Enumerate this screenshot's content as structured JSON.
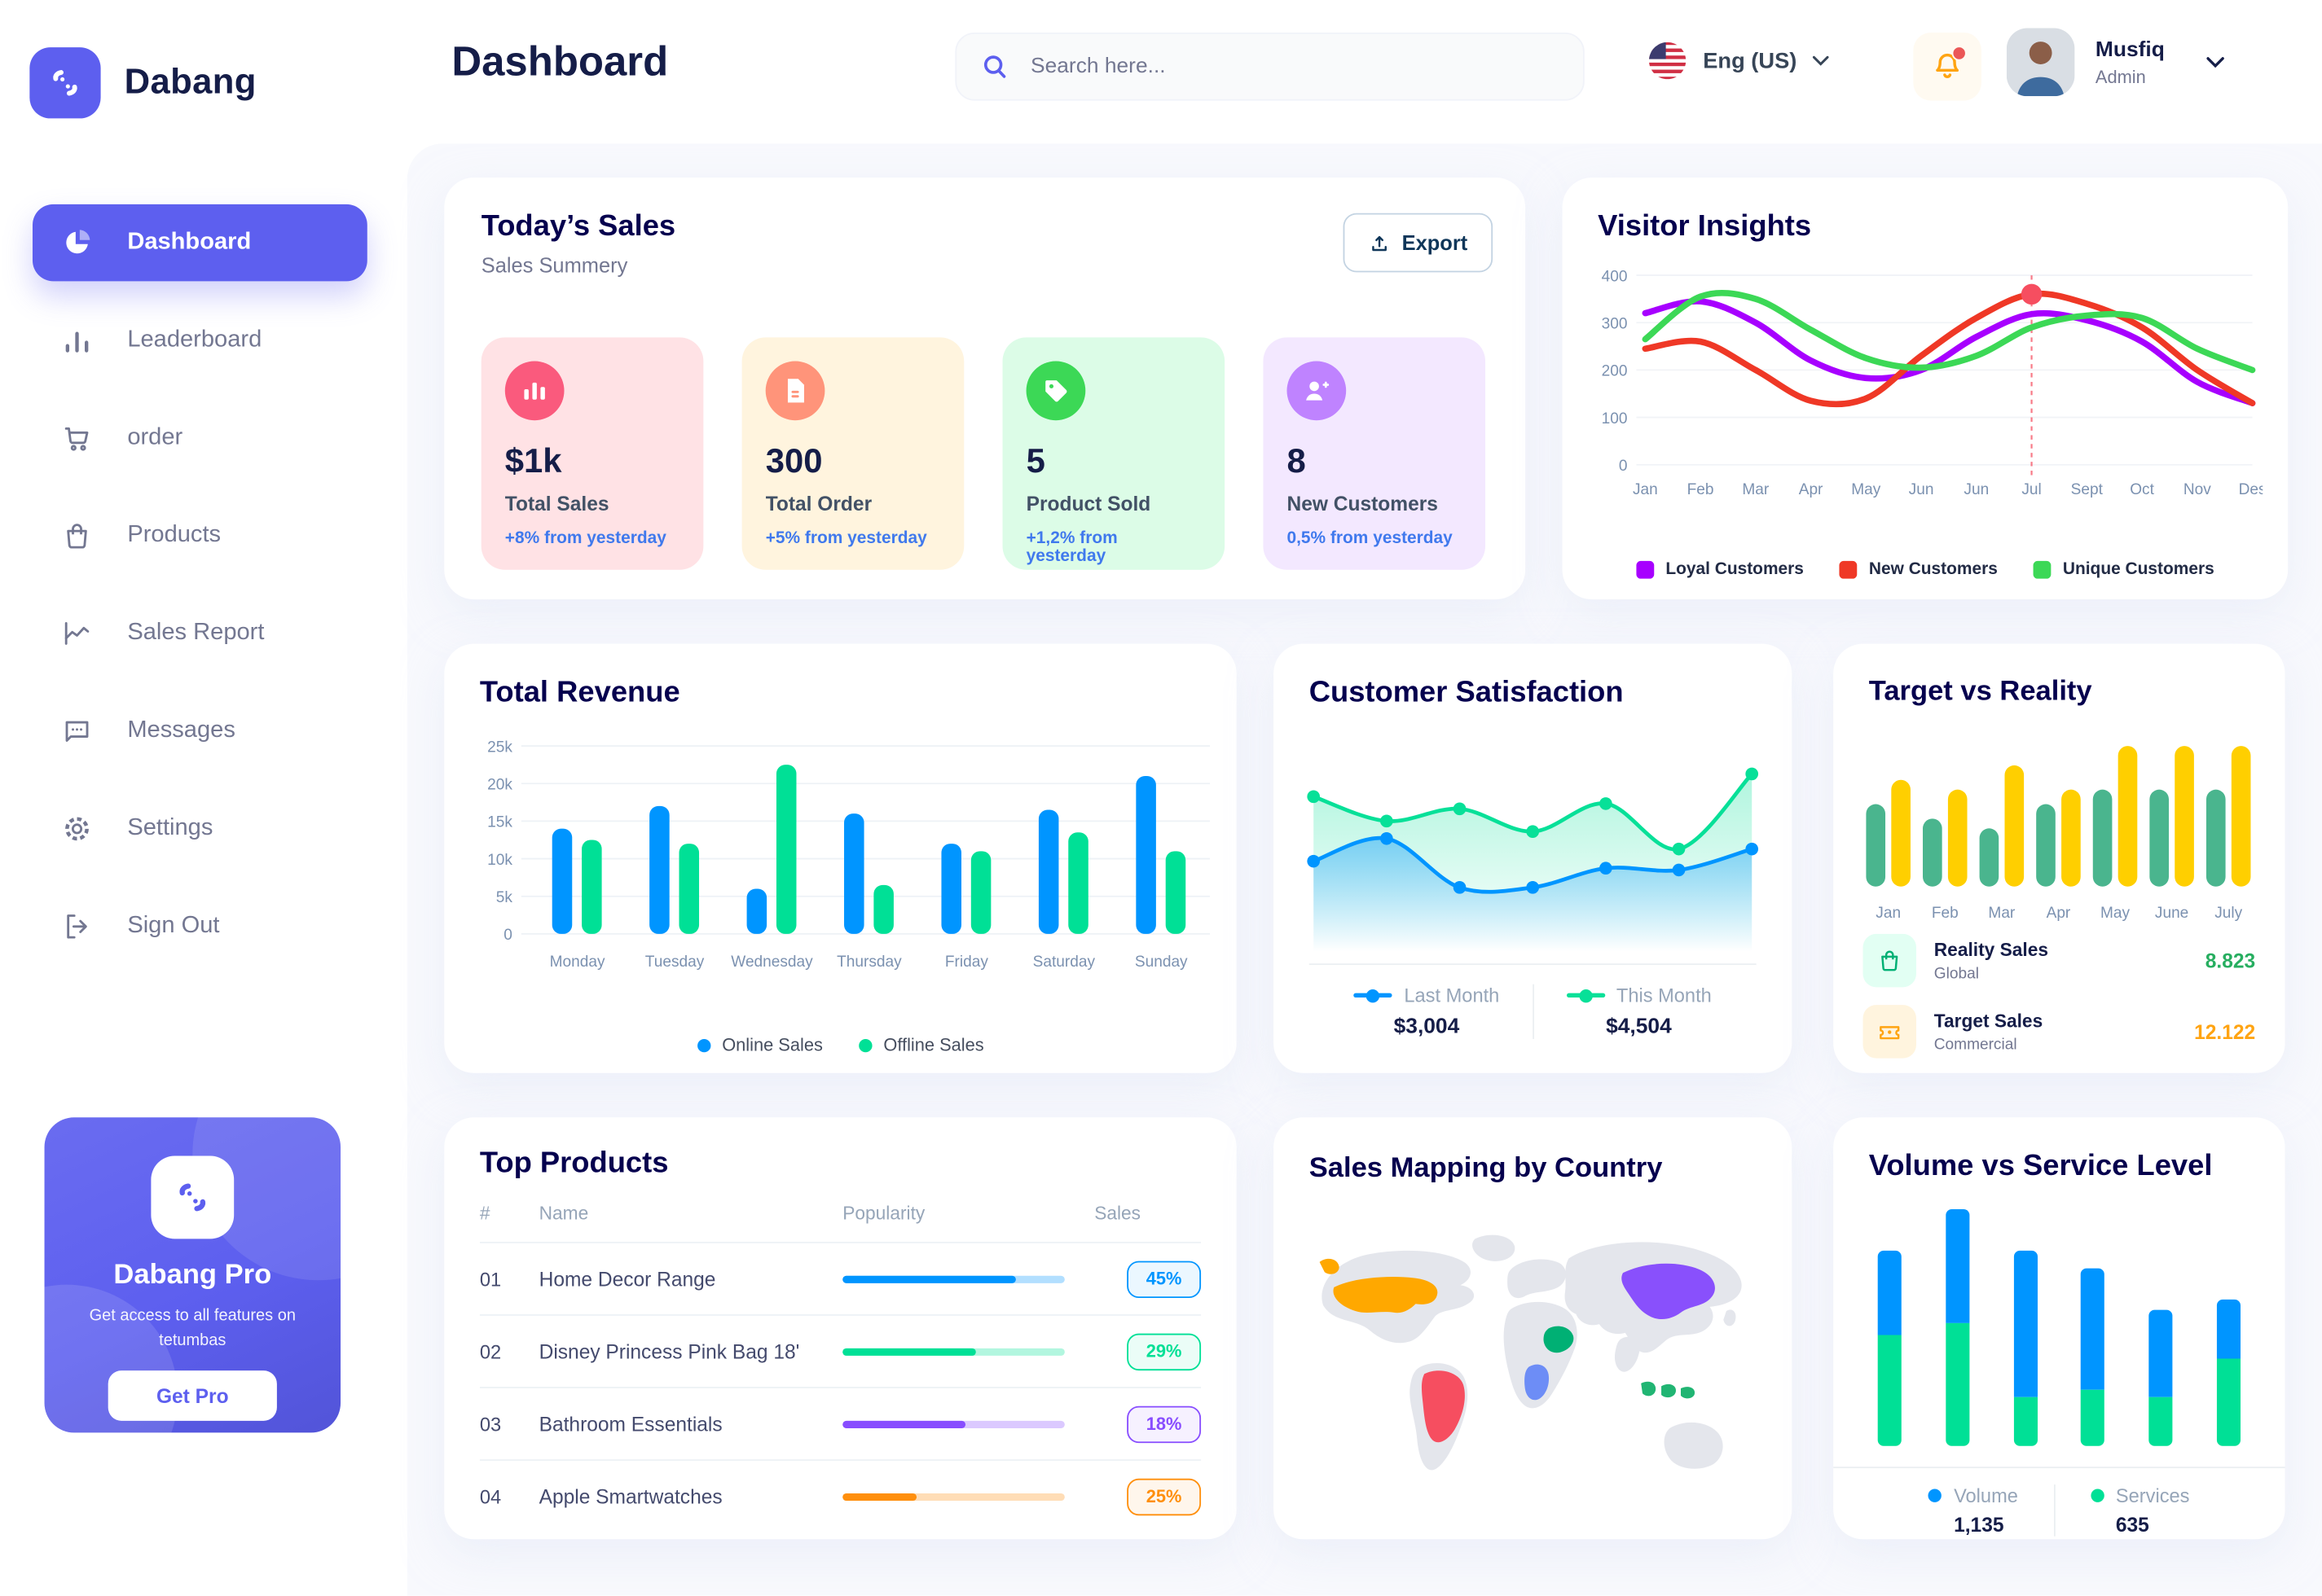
{
  "app": {
    "name": "Dabang"
  },
  "header": {
    "page_title": "Dashboard",
    "search_placeholder": "Search here...",
    "language": "Eng (US)",
    "user": {
      "name": "Musfiq",
      "role": "Admin"
    }
  },
  "sidebar": {
    "items": [
      {
        "label": "Dashboard",
        "icon": "pie-chart",
        "active": true
      },
      {
        "label": "Leaderboard",
        "icon": "bar-chart",
        "active": false
      },
      {
        "label": "order",
        "icon": "cart",
        "active": false
      },
      {
        "label": "Products",
        "icon": "bag",
        "active": false
      },
      {
        "label": "Sales Report",
        "icon": "line-chart",
        "active": false
      },
      {
        "label": "Messages",
        "icon": "chat",
        "active": false
      },
      {
        "label": "Settings",
        "icon": "gear",
        "active": false
      },
      {
        "label": "Sign Out",
        "icon": "sign-out",
        "active": false
      }
    ],
    "promo": {
      "title": "Dabang Pro",
      "subtitle": "Get access to all features on tetumbas",
      "button_label": "Get Pro"
    }
  },
  "today_sales": {
    "title": "Today’s Sales",
    "subtitle": "Sales Summery",
    "export_label": "Export",
    "cards": [
      {
        "value": "$1k",
        "label": "Total Sales",
        "delta": "+8% from yesterday",
        "bg": "#FFE2E5",
        "icon_bg": "#FA5A7D",
        "icon": "stat-chart",
        "delta_color": "#4079ED"
      },
      {
        "value": "300",
        "label": "Total Order",
        "delta": "+5% from yesterday",
        "bg": "#FFF4DE",
        "icon_bg": "#FF947A",
        "icon": "stat-file",
        "delta_color": "#4079ED"
      },
      {
        "value": "5",
        "label": "Product Sold",
        "delta": "+1,2% from yesterday",
        "bg": "#DCFCE7",
        "icon_bg": "#3CD856",
        "icon": "stat-tag",
        "delta_color": "#4079ED"
      },
      {
        "value": "8",
        "label": "New Customers",
        "delta": "0,5% from yesterday",
        "bg": "#F3E8FF",
        "icon_bg": "#BF83FF",
        "icon": "stat-user-plus",
        "delta_color": "#4079ED"
      }
    ]
  },
  "chart_data": {
    "visitor_insights": {
      "type": "line",
      "title": "Visitor Insights",
      "x": [
        "Jan",
        "Feb",
        "Mar",
        "Apr",
        "May",
        "Jun",
        "Jun",
        "Jul",
        "Sept",
        "Oct",
        "Nov",
        "Des"
      ],
      "ylim": [
        0,
        400
      ],
      "yticks": [
        0,
        100,
        200,
        300,
        400
      ],
      "grid": true,
      "legend_position": "bottom",
      "series": [
        {
          "name": "Loyal Customers",
          "color": "#A700FF",
          "values": [
            320,
            345,
            300,
            220,
            183,
            200,
            270,
            318,
            305,
            260,
            175,
            130
          ]
        },
        {
          "name": "New Customers",
          "color": "#EF3826",
          "values": [
            245,
            260,
            200,
            135,
            140,
            230,
            310,
            360,
            340,
            290,
            200,
            130
          ]
        },
        {
          "name": "Unique Customers",
          "color": "#3CD856",
          "values": [
            265,
            355,
            350,
            285,
            225,
            205,
            230,
            290,
            315,
            310,
            245,
            200
          ]
        }
      ],
      "marker": {
        "series": "New Customers",
        "x_index": 7,
        "value": 360,
        "color": "#F64E60"
      }
    },
    "total_revenue": {
      "type": "bar",
      "title": "Total Revenue",
      "categories": [
        "Monday",
        "Tuesday",
        "Wednesday",
        "Thursday",
        "Friday",
        "Saturday",
        "Sunday"
      ],
      "ylim": [
        0,
        25000
      ],
      "yticks": [
        0,
        5000,
        10000,
        15000,
        20000,
        25000
      ],
      "ytick_labels": [
        "0",
        "5k",
        "10k",
        "15k",
        "20k",
        "25k"
      ],
      "grid": true,
      "legend_position": "bottom",
      "series": [
        {
          "name": "Online Sales",
          "color": "#0095FF",
          "values": [
            14000,
            17000,
            6000,
            16000,
            12000,
            16500,
            21000
          ]
        },
        {
          "name": "Offline Sales",
          "color": "#00E096",
          "values": [
            12500,
            12000,
            22500,
            6500,
            11000,
            13500,
            11000
          ]
        }
      ]
    },
    "customer_satisfaction": {
      "type": "area",
      "title": "Customer Satisfaction",
      "x": [
        1,
        2,
        3,
        4,
        5,
        6,
        7
      ],
      "series": [
        {
          "name": "Last Month",
          "color": "#0095FF",
          "total": "$3,004",
          "values": [
            45,
            58,
            30,
            30,
            41,
            40,
            52
          ]
        },
        {
          "name": "This Month",
          "color": "#07E098",
          "total": "$4,504",
          "values": [
            82,
            68,
            75,
            62,
            78,
            52,
            95
          ]
        }
      ],
      "legend_position": "bottom"
    },
    "target_vs_reality": {
      "type": "bar",
      "title": "Target vs Reality",
      "categories": [
        "Jan",
        "Feb",
        "Mar",
        "Apr",
        "May",
        "June",
        "July"
      ],
      "series": [
        {
          "name": "Reality Sales",
          "color": "#4AB58E",
          "values": [
            8.5,
            7,
            6,
            8.5,
            10,
            10,
            10
          ]
        },
        {
          "name": "Target Sales",
          "color": "#FFCF00",
          "values": [
            11,
            10,
            12.5,
            10,
            14.5,
            14.5,
            14.5
          ]
        }
      ],
      "legend": [
        {
          "label": "Reality Sales",
          "sublabel": "Global",
          "value": "8.823",
          "value_color": "#27AE60",
          "icon": "bag",
          "icon_bg": "#E2FFF3",
          "icon_color": "#00B074"
        },
        {
          "label": "Target Sales",
          "sublabel": "Commercial",
          "value": "12.122",
          "value_color": "#FFA412",
          "icon": "ticket",
          "icon_bg": "#FFF4DE",
          "icon_color": "#FFA412"
        }
      ]
    },
    "top_products": {
      "type": "table",
      "title": "Top Products",
      "headers": [
        "#",
        "Name",
        "Popularity",
        "Sales"
      ],
      "rows": [
        {
          "id": "01",
          "name": "Home Decor Range",
          "popularity": 78,
          "sales": "45%",
          "color": "#0095FF"
        },
        {
          "id": "02",
          "name": "Disney Princess Pink Bag 18'",
          "popularity": 60,
          "sales": "29%",
          "color": "#00E096"
        },
        {
          "id": "03",
          "name": "Bathroom Essentials",
          "popularity": 55,
          "sales": "18%",
          "color": "#884DFF"
        },
        {
          "id": "04",
          "name": "Apple Smartwatches",
          "popularity": 33,
          "sales": "25%",
          "color": "#FF8F0D"
        }
      ]
    },
    "sales_mapping": {
      "type": "map",
      "title": "Sales Mapping by Country",
      "highlights": [
        {
          "key": "usa",
          "name": "United States",
          "color": "#FFA800"
        },
        {
          "key": "brazil",
          "name": "Brazil",
          "color": "#F64E60"
        },
        {
          "key": "saudi",
          "name": "Saudi Arabia",
          "color": "#00B074"
        },
        {
          "key": "congo",
          "name": "DR Congo",
          "color": "#6D8DF6"
        },
        {
          "key": "china",
          "name": "China",
          "color": "#8950FC"
        },
        {
          "key": "indonesia",
          "name": "Indonesia",
          "color": "#21B573"
        }
      ]
    },
    "volume_service": {
      "type": "stacked-bar",
      "title": "Volume vs Service Level",
      "series": [
        {
          "name": "Volume",
          "color": "#0095FF",
          "total": "1,135",
          "values": [
            33,
            44,
            57,
            47,
            34,
            23
          ]
        },
        {
          "name": "Services",
          "color": "#00E096",
          "total": "635",
          "values": [
            43,
            48,
            19,
            22,
            19,
            34
          ]
        }
      ],
      "legend_position": "bottom"
    }
  }
}
